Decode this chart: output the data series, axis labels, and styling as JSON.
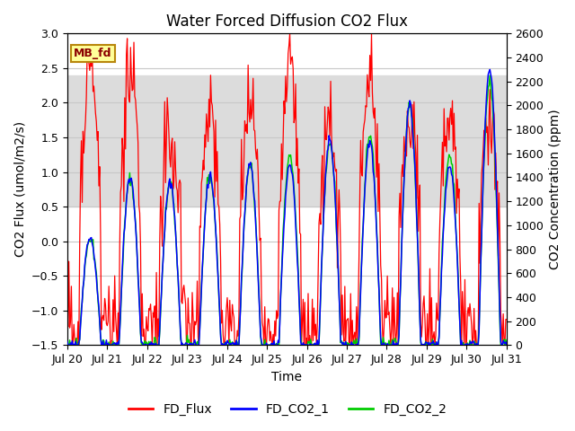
{
  "title": "Water Forced Diffusion CO2 Flux",
  "xlabel": "Time",
  "ylabel_left": "CO2 Flux (umol/m2/s)",
  "ylabel_right": "CO2 Concentration (ppm)",
  "ylim_left": [
    -1.5,
    3.0
  ],
  "ylim_right": [
    0,
    2600
  ],
  "xlim": [
    20,
    31
  ],
  "xtick_labels": [
    "Jul 20",
    "Jul 21",
    "Jul 22",
    "Jul 23",
    "Jul 24",
    "Jul 25",
    "Jul 26",
    "Jul 27",
    "Jul 28",
    "Jul 29",
    "Jul 30",
    "Jul 31"
  ],
  "xtick_positions": [
    20,
    21,
    22,
    23,
    24,
    25,
    26,
    27,
    28,
    29,
    30,
    31
  ],
  "label_box_text": "MB_fd",
  "shade_y1": 0.5,
  "shade_y2": 2.4,
  "flux_color": "#FF0000",
  "co2_1_color": "#0000FF",
  "co2_2_color": "#00CC00",
  "flux_lw": 0.9,
  "co2_lw": 1.1,
  "legend_labels": [
    "FD_Flux",
    "FD_CO2_1",
    "FD_CO2_2"
  ],
  "bg_color": "#FFFFFF",
  "shade_color": "#DCDCDC",
  "grid_color": "#C8C8C8"
}
